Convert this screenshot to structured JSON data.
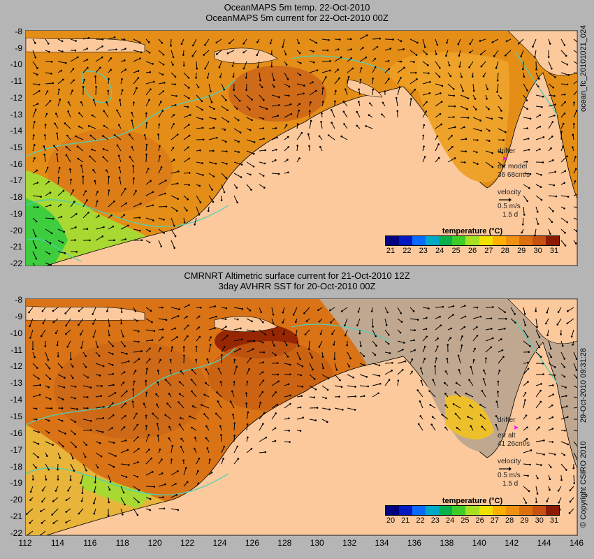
{
  "titles": {
    "top_line1": "OceanMAPS 5m temp. 22-Oct-2010",
    "top_line2": "OceanMAPS 5m current for 22-Oct-2010 00Z",
    "bottom_line1": "CMRNRT Altimetric surface current for 21-Oct-2010 12Z",
    "bottom_line2": "3day AVHRR SST for 20-Oct-2010 00Z"
  },
  "side_labels": {
    "top_right": "ocean_fc_20101021_024",
    "bottom_right": "29-Oct-2010 09:31:28",
    "copyright": "© Copyright CSIRO 2010"
  },
  "y_ticks": [
    "-8",
    "-9",
    "-10",
    "-11",
    "-12",
    "-13",
    "-14",
    "-15",
    "-16",
    "-17",
    "-18",
    "-19",
    "-20",
    "-21",
    "-22"
  ],
  "x_ticks": [
    "112",
    "114",
    "116",
    "118",
    "120",
    "122",
    "124",
    "126",
    "128",
    "130",
    "132",
    "134",
    "136",
    "138",
    "140",
    "142",
    "144",
    "146"
  ],
  "legend_top": {
    "drifter": "drifter",
    "err_label": "err model",
    "err_value": "36 68cm/s",
    "velocity": "velocity",
    "speed": "0.5 m/s",
    "time": "1.5 d"
  },
  "legend_bottom": {
    "drifter": "drifter",
    "err_label": "err alt",
    "err_value": "41 26cm/s",
    "velocity": "velocity",
    "speed": "0.5 m/s",
    "time": "1.5 d"
  },
  "colorbar_top": {
    "title": "temperature (°C)",
    "labels": [
      "21",
      "22",
      "23",
      "24",
      "25",
      "26",
      "27",
      "28",
      "29",
      "30",
      "31"
    ],
    "colors": [
      "#000080",
      "#0018c0",
      "#0a6aff",
      "#00a8c8",
      "#0ab04a",
      "#3ccd28",
      "#a6e020",
      "#f2e000",
      "#ffb000",
      "#f09010",
      "#dc7010",
      "#c85010",
      "#8b1a00"
    ]
  },
  "colorbar_bottom": {
    "title": "temperature (°C)",
    "labels": [
      "20",
      "21",
      "22",
      "23",
      "24",
      "25",
      "26",
      "27",
      "28",
      "29",
      "30",
      "31"
    ],
    "colors": [
      "#000080",
      "#0018c0",
      "#0a6aff",
      "#00a8c8",
      "#0ab04a",
      "#3ccd28",
      "#a6e020",
      "#f2e000",
      "#ffb000",
      "#f09010",
      "#dc7010",
      "#c85010",
      "#8b1a00"
    ]
  },
  "colors": {
    "land": "#fcc99d",
    "ocean_warm": "#e48e17",
    "ocean_hot": "#c75f12",
    "ocean_mid": "#f2b124",
    "ocean_cool": "#b9d832",
    "ocean_green": "#3dcd3e",
    "no_data": "#c0a890",
    "contour": "#4fd0b8",
    "arrow": "#000000",
    "drifter": "#ff00ff"
  }
}
